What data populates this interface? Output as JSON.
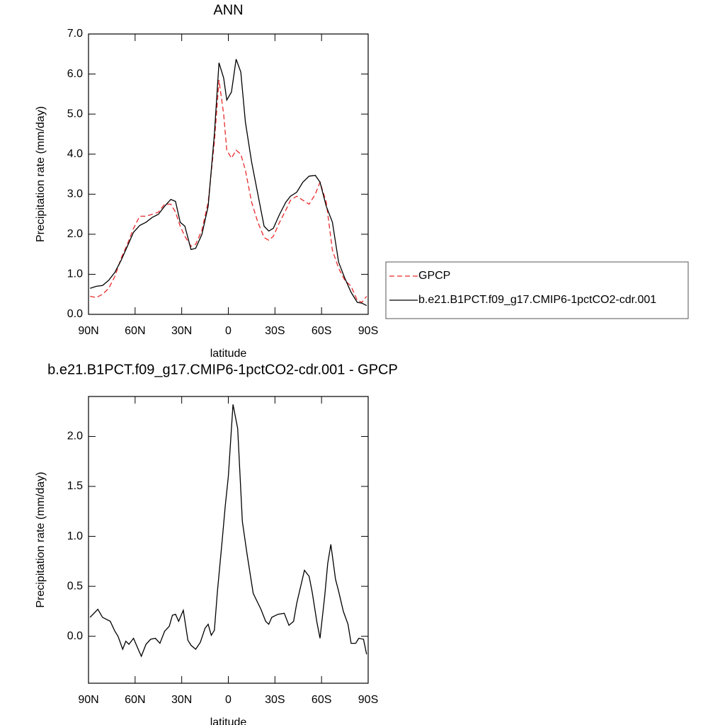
{
  "chart_data": [
    {
      "type": "line",
      "title": "ANN",
      "xlabel": "latitude",
      "ylabel": "Precipitation rate (mm/day)",
      "x": [
        89,
        85,
        81,
        77,
        73,
        69,
        65,
        61,
        57,
        53,
        49,
        45,
        41,
        37,
        34,
        31,
        28,
        24,
        21,
        17,
        13,
        9,
        6,
        3,
        1,
        -2,
        -5,
        -8,
        -11,
        -15,
        -19,
        -23,
        -26,
        -29,
        -33,
        -37,
        -40,
        -44,
        -48,
        -52,
        -56,
        -59,
        -63,
        -67,
        -71,
        -75,
        -79,
        -83,
        -86,
        -89
      ],
      "series": [
        {
          "name": "GPCP",
          "color": "#e8292b",
          "dashed": true,
          "values": [
            0.45,
            0.42,
            0.5,
            0.65,
            0.95,
            1.4,
            1.75,
            2.15,
            2.45,
            2.45,
            2.5,
            2.55,
            2.75,
            2.75,
            2.55,
            2.2,
            1.95,
            1.7,
            1.75,
            2.1,
            2.8,
            4.3,
            5.85,
            5.0,
            4.1,
            3.9,
            4.1,
            4.0,
            3.6,
            2.8,
            2.3,
            1.92,
            1.85,
            1.95,
            2.3,
            2.6,
            2.85,
            2.95,
            2.85,
            2.75,
            3.0,
            3.3,
            2.8,
            1.6,
            1.15,
            0.85,
            0.7,
            0.35,
            0.3,
            0.45
          ]
        },
        {
          "name": "b.e21.B1PCT.f09_g17.CMIP6-1pctCO2-cdr.001",
          "color": "#000000",
          "dashed": false,
          "values": [
            0.65,
            0.7,
            0.72,
            0.85,
            1.05,
            1.35,
            1.7,
            2.05,
            2.22,
            2.3,
            2.42,
            2.5,
            2.7,
            2.87,
            2.82,
            2.3,
            2.2,
            1.62,
            1.65,
            2.0,
            2.7,
            4.5,
            6.28,
            5.9,
            5.35,
            5.55,
            6.37,
            6.05,
            4.8,
            3.8,
            3.0,
            2.2,
            2.08,
            2.15,
            2.5,
            2.8,
            2.95,
            3.05,
            3.3,
            3.45,
            3.47,
            3.3,
            2.7,
            2.3,
            1.3,
            0.9,
            0.55,
            0.3,
            0.28,
            0.22
          ]
        }
      ],
      "xlim": [
        90,
        -90
      ],
      "xticks": [
        {
          "value": 90,
          "label": "90N"
        },
        {
          "value": 60,
          "label": "60N"
        },
        {
          "value": 30,
          "label": "30N"
        },
        0,
        {
          "value": -30,
          "label": "30S"
        },
        {
          "value": -60,
          "label": "60S"
        },
        {
          "value": -90,
          "label": "90S"
        }
      ],
      "ylim": [
        0,
        7
      ],
      "yticks": [
        {
          "value": 0,
          "label": "0.0"
        },
        {
          "value": 1,
          "label": "1.0"
        },
        {
          "value": 2,
          "label": "2.0"
        },
        {
          "value": 3,
          "label": "3.0"
        },
        {
          "value": 4,
          "label": "4.0"
        },
        {
          "value": 5,
          "label": "5.0"
        },
        {
          "value": 6,
          "label": "6.0"
        },
        {
          "value": 7,
          "label": "7.0"
        }
      ],
      "legend": "right"
    },
    {
      "type": "line",
      "title": "b.e21.B1PCT.f09_g17.CMIP6-1pctCO2-cdr.001 - GPCP",
      "xlabel": "latitude",
      "ylabel": "Precipitation rate (mm/day)",
      "x": [
        89,
        84,
        81,
        76,
        73,
        71,
        68,
        66,
        64,
        61,
        58,
        56,
        53,
        50,
        47,
        44,
        41,
        38,
        36,
        34,
        32,
        29,
        26,
        24,
        21,
        18,
        15,
        13,
        11,
        9,
        7,
        4,
        2,
        0,
        -3,
        -6,
        -9,
        -12,
        -16,
        -21,
        -24,
        -26,
        -28,
        -32,
        -36,
        -39,
        -42,
        -44,
        -49,
        -52,
        -54,
        -57,
        -59,
        -62,
        -64,
        -66,
        -69,
        -71,
        -74,
        -77,
        -79,
        -82,
        -84,
        -87,
        -89
      ],
      "series": [
        {
          "color": "#000000",
          "dashed": false,
          "values": [
            0.19,
            0.27,
            0.19,
            0.15,
            0.05,
            0.0,
            -0.13,
            -0.05,
            -0.08,
            -0.02,
            -0.13,
            -0.2,
            -0.08,
            -0.03,
            -0.02,
            -0.07,
            0.05,
            0.1,
            0.21,
            0.22,
            0.15,
            0.26,
            -0.04,
            -0.09,
            -0.13,
            -0.06,
            0.08,
            0.12,
            0.01,
            0.06,
            0.45,
            0.95,
            1.3,
            1.6,
            2.32,
            2.08,
            1.15,
            0.83,
            0.43,
            0.27,
            0.15,
            0.12,
            0.19,
            0.22,
            0.23,
            0.11,
            0.15,
            0.33,
            0.66,
            0.6,
            0.44,
            0.14,
            -0.02,
            0.4,
            0.73,
            0.92,
            0.57,
            0.45,
            0.25,
            0.12,
            -0.07,
            -0.07,
            -0.02,
            -0.03,
            -0.18
          ]
        }
      ],
      "xlim": [
        90,
        -90
      ],
      "xticks": [
        {
          "value": 90,
          "label": "90N"
        },
        {
          "value": 60,
          "label": "60N"
        },
        {
          "value": 30,
          "label": "30N"
        },
        0,
        {
          "value": -30,
          "label": "30S"
        },
        {
          "value": -60,
          "label": "60S"
        },
        {
          "value": -90,
          "label": "90S"
        }
      ],
      "ylim": [
        -0.47,
        2.4
      ],
      "yticks": [
        {
          "value": 0,
          "label": "0.0"
        },
        {
          "value": 0.5,
          "label": "0.5"
        },
        {
          "value": 1,
          "label": "1.0"
        },
        {
          "value": 1.5,
          "label": "1.5"
        },
        {
          "value": 2,
          "label": "2.0"
        }
      ]
    }
  ]
}
